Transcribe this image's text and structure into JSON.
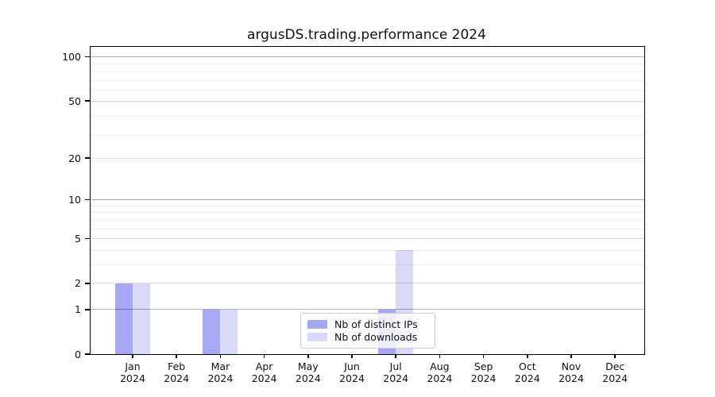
{
  "chart_data": {
    "type": "bar",
    "title": "argusDS.trading.performance 2024",
    "categories": [
      "Jan",
      "Feb",
      "Mar",
      "Apr",
      "May",
      "Jun",
      "Jul",
      "Aug",
      "Sep",
      "Oct",
      "Nov",
      "Dec"
    ],
    "year_label": "2024",
    "series": [
      {
        "name": "Nb of distinct IPs",
        "color": "#a7a7f5",
        "values": [
          2,
          0,
          1,
          0,
          0,
          0,
          1,
          0,
          0,
          0,
          0,
          0
        ]
      },
      {
        "name": "Nb of downloads",
        "color": "#d9d9fa",
        "values": [
          2,
          0,
          1,
          0,
          0,
          0,
          4,
          0,
          0,
          0,
          0,
          0
        ]
      }
    ],
    "yscale": "log1p",
    "ylim": [
      0,
      116
    ],
    "yticks": [
      0,
      1,
      2,
      5,
      10,
      20,
      50,
      100
    ],
    "emphasized_gridlines": [
      1,
      10,
      100
    ],
    "minor_gridlines": [
      3,
      4,
      6,
      7,
      8,
      9,
      19,
      29,
      39,
      49,
      59,
      69,
      79,
      89
    ],
    "grid": true,
    "legend": {
      "position": "lower center",
      "entries": [
        "Nb of distinct IPs",
        "Nb of downloads"
      ]
    }
  }
}
